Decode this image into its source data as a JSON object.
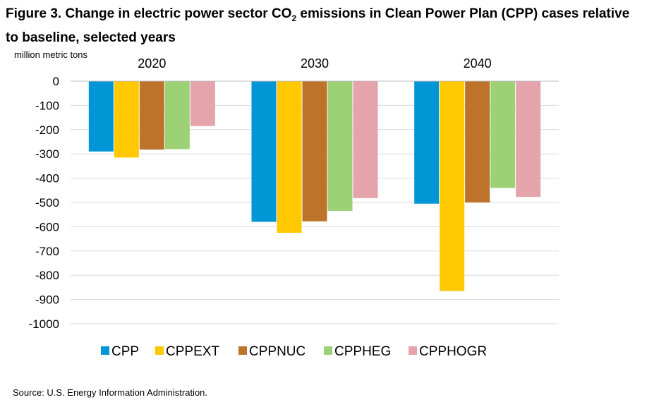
{
  "figure": {
    "title_main": "Figure 3. Change in electric power sector CO",
    "title_sub": "2",
    "title_rest": " emissions in Clean Power Plan (CPP) cases relative to baseline, selected years",
    "unit_label": "million metric tons",
    "source": "Source: U.S. Energy Information Administration."
  },
  "chart_data": {
    "type": "bar",
    "title": "Figure 3. Change in electric power sector CO2 emissions in Clean Power Plan (CPP) cases relative to baseline, selected years",
    "ylabel": "million metric tons",
    "xlabel": "",
    "categories": [
      "2020",
      "2030",
      "2040"
    ],
    "ylim": [
      -1000,
      0
    ],
    "yticks": [
      0,
      -100,
      -200,
      -300,
      -400,
      -500,
      -600,
      -700,
      -800,
      -900,
      -1000
    ],
    "grid": true,
    "legend_position": "bottom",
    "series": [
      {
        "name": "CPP",
        "color": "#0096D6",
        "values": [
          -290,
          -580,
          -505
        ]
      },
      {
        "name": "CPPEXT",
        "color": "#FFC800",
        "values": [
          -315,
          -625,
          -865
        ]
      },
      {
        "name": "CPPNUC",
        "color": "#BD732A",
        "values": [
          -282,
          -578,
          -500
        ]
      },
      {
        "name": "CPPHEG",
        "color": "#9CD176",
        "values": [
          -280,
          -535,
          -440
        ]
      },
      {
        "name": "CPPHOGR",
        "color": "#E5A3AC",
        "values": [
          -185,
          -482,
          -477
        ]
      }
    ]
  }
}
